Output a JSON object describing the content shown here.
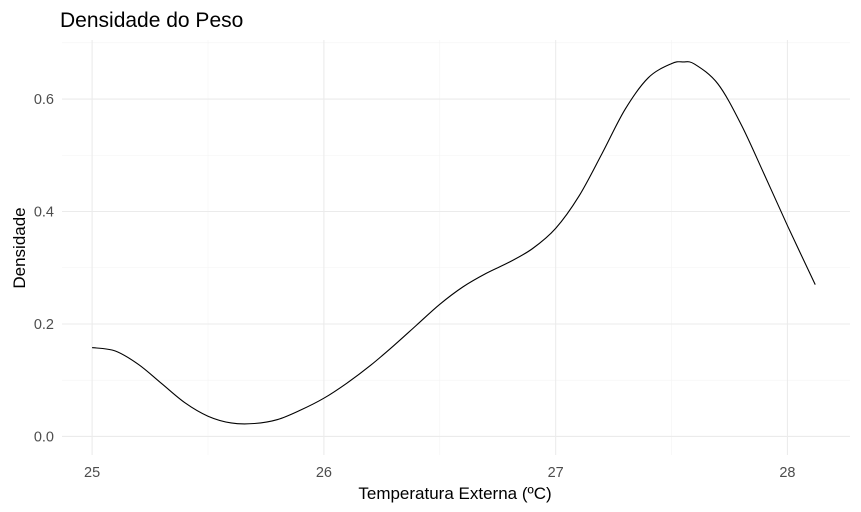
{
  "chart_data": {
    "type": "line",
    "title": "Densidade do Peso",
    "xlabel": "Temperatura Externa (ºC)",
    "ylabel": "Densidade",
    "xlim": [
      24.87,
      28.27
    ],
    "ylim": [
      -0.033,
      0.705
    ],
    "x_ticks": [
      25,
      26,
      27,
      28
    ],
    "x_tick_labels": [
      "25",
      "26",
      "27",
      "28"
    ],
    "y_ticks": [
      0.0,
      0.2,
      0.4,
      0.6
    ],
    "y_tick_labels": [
      "0.0",
      "0.2",
      "0.4",
      "0.6"
    ],
    "grid": true,
    "legend": "none",
    "series": [
      {
        "color": "#000000",
        "x": [
          25.0,
          25.1,
          25.2,
          25.3,
          25.4,
          25.5,
          25.6,
          25.7,
          25.8,
          25.9,
          26.0,
          26.1,
          26.2,
          26.3,
          26.4,
          26.5,
          26.6,
          26.7,
          26.8,
          26.9,
          27.0,
          27.1,
          27.2,
          27.3,
          27.4,
          27.5,
          27.55,
          27.6,
          27.7,
          27.8,
          27.9,
          28.0,
          28.12
        ],
        "y": [
          0.158,
          0.152,
          0.128,
          0.094,
          0.06,
          0.036,
          0.024,
          0.023,
          0.03,
          0.047,
          0.068,
          0.095,
          0.126,
          0.161,
          0.198,
          0.235,
          0.266,
          0.29,
          0.31,
          0.334,
          0.37,
          0.427,
          0.503,
          0.582,
          0.638,
          0.663,
          0.666,
          0.662,
          0.627,
          0.555,
          0.466,
          0.375,
          0.27
        ]
      }
    ]
  }
}
